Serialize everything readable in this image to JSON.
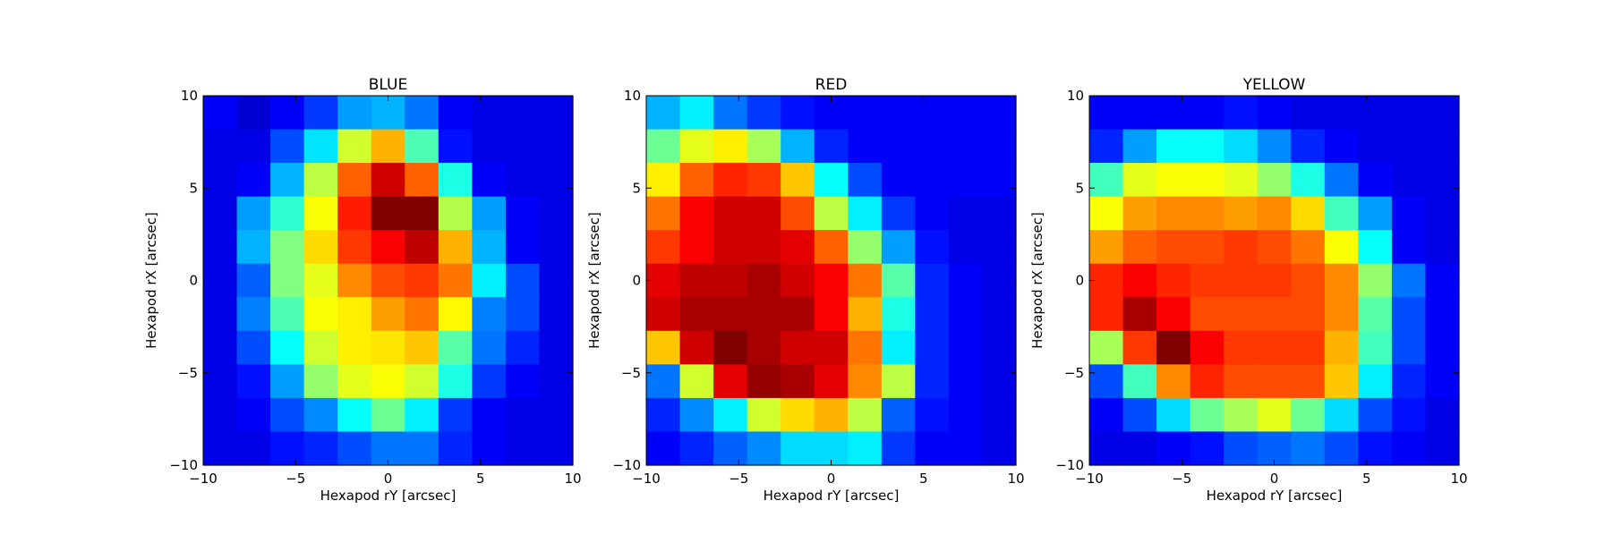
{
  "figure": {
    "background": "#ffffff",
    "colormap": "jet"
  },
  "chart_data": [
    {
      "type": "heatmap",
      "title": "BLUE",
      "xlabel": "Hexapod rY [arcsec]",
      "ylabel": "Hexapod rX [arcsec]",
      "xlim": [
        -10,
        10
      ],
      "ylim": [
        -10,
        10
      ],
      "xticks": [
        -10,
        -5,
        0,
        5,
        10
      ],
      "yticks": [
        -10,
        -5,
        0,
        5,
        10
      ],
      "tick_labels": [
        "−10",
        "−5",
        "0",
        "5",
        "10"
      ],
      "grid_size": [
        11,
        11
      ],
      "value_range": [
        0,
        1
      ],
      "values_top_to_bottom": [
        [
          0.12,
          0.08,
          0.12,
          0.18,
          0.28,
          0.3,
          0.24,
          0.12,
          0.1,
          0.1,
          0.1
        ],
        [
          0.1,
          0.1,
          0.2,
          0.35,
          0.58,
          0.7,
          0.45,
          0.14,
          0.1,
          0.1,
          0.1
        ],
        [
          0.1,
          0.12,
          0.3,
          0.56,
          0.78,
          0.92,
          0.78,
          0.4,
          0.12,
          0.1,
          0.1
        ],
        [
          0.1,
          0.28,
          0.42,
          0.62,
          0.85,
          1.0,
          1.0,
          0.55,
          0.28,
          0.12,
          0.1
        ],
        [
          0.1,
          0.3,
          0.5,
          0.66,
          0.82,
          0.88,
          0.94,
          0.7,
          0.3,
          0.12,
          0.1
        ],
        [
          0.1,
          0.22,
          0.5,
          0.6,
          0.74,
          0.8,
          0.82,
          0.76,
          0.36,
          0.2,
          0.1
        ],
        [
          0.1,
          0.25,
          0.45,
          0.62,
          0.64,
          0.72,
          0.76,
          0.63,
          0.25,
          0.2,
          0.1
        ],
        [
          0.1,
          0.2,
          0.38,
          0.58,
          0.64,
          0.65,
          0.68,
          0.46,
          0.24,
          0.16,
          0.1
        ],
        [
          0.1,
          0.14,
          0.28,
          0.52,
          0.6,
          0.62,
          0.58,
          0.4,
          0.18,
          0.12,
          0.1
        ],
        [
          0.1,
          0.12,
          0.2,
          0.26,
          0.38,
          0.48,
          0.36,
          0.18,
          0.12,
          0.1,
          0.1
        ],
        [
          0.1,
          0.1,
          0.14,
          0.16,
          0.2,
          0.24,
          0.24,
          0.16,
          0.12,
          0.1,
          0.1
        ]
      ]
    },
    {
      "type": "heatmap",
      "title": "RED",
      "xlabel": "Hexapod rY [arcsec]",
      "ylabel": "Hexapod rX [arcsec]",
      "xlim": [
        -10,
        10
      ],
      "ylim": [
        -10,
        10
      ],
      "xticks": [
        -10,
        -5,
        0,
        5,
        10
      ],
      "yticks": [
        -10,
        -5,
        0,
        5,
        10
      ],
      "tick_labels": [
        "−10",
        "−5",
        "0",
        "5",
        "10"
      ],
      "grid_size": [
        11,
        11
      ],
      "value_range": [
        0,
        1
      ],
      "values_top_to_bottom": [
        [
          0.3,
          0.36,
          0.24,
          0.18,
          0.14,
          0.12,
          0.12,
          0.12,
          0.12,
          0.12,
          0.12
        ],
        [
          0.48,
          0.6,
          0.64,
          0.54,
          0.3,
          0.16,
          0.12,
          0.12,
          0.12,
          0.12,
          0.12
        ],
        [
          0.64,
          0.78,
          0.84,
          0.82,
          0.68,
          0.38,
          0.2,
          0.12,
          0.12,
          0.12,
          0.12
        ],
        [
          0.76,
          0.88,
          0.92,
          0.92,
          0.8,
          0.56,
          0.36,
          0.18,
          0.12,
          0.1,
          0.1
        ],
        [
          0.82,
          0.88,
          0.92,
          0.92,
          0.9,
          0.78,
          0.52,
          0.28,
          0.14,
          0.1,
          0.1
        ],
        [
          0.9,
          0.94,
          0.94,
          0.96,
          0.92,
          0.88,
          0.76,
          0.46,
          0.16,
          0.12,
          0.1
        ],
        [
          0.92,
          0.96,
          0.96,
          0.96,
          0.96,
          0.88,
          0.7,
          0.4,
          0.16,
          0.12,
          0.1
        ],
        [
          0.68,
          0.92,
          1.0,
          0.96,
          0.92,
          0.92,
          0.76,
          0.36,
          0.16,
          0.12,
          0.1
        ],
        [
          0.24,
          0.58,
          0.9,
          0.98,
          0.96,
          0.9,
          0.74,
          0.56,
          0.16,
          0.12,
          0.1
        ],
        [
          0.16,
          0.26,
          0.36,
          0.58,
          0.66,
          0.7,
          0.56,
          0.22,
          0.14,
          0.12,
          0.1
        ],
        [
          0.12,
          0.16,
          0.22,
          0.26,
          0.34,
          0.34,
          0.36,
          0.18,
          0.12,
          0.12,
          0.1
        ]
      ]
    },
    {
      "type": "heatmap",
      "title": "YELLOW",
      "xlabel": "Hexapod rY [arcsec]",
      "ylabel": "Hexapod rX [arcsec]",
      "xlim": [
        -10,
        10
      ],
      "ylim": [
        -10,
        10
      ],
      "xticks": [
        -10,
        -5,
        0,
        5,
        10
      ],
      "yticks": [
        -10,
        -5,
        0,
        5,
        10
      ],
      "tick_labels": [
        "−10",
        "−5",
        "0",
        "5",
        "10"
      ],
      "grid_size": [
        11,
        11
      ],
      "value_range": [
        0,
        1
      ],
      "values_top_to_bottom": [
        [
          0.12,
          0.12,
          0.12,
          0.12,
          0.14,
          0.12,
          0.1,
          0.1,
          0.1,
          0.1,
          0.1
        ],
        [
          0.16,
          0.28,
          0.38,
          0.38,
          0.34,
          0.26,
          0.16,
          0.12,
          0.1,
          0.1,
          0.1
        ],
        [
          0.44,
          0.6,
          0.62,
          0.62,
          0.6,
          0.52,
          0.4,
          0.24,
          0.12,
          0.1,
          0.1
        ],
        [
          0.62,
          0.72,
          0.74,
          0.74,
          0.72,
          0.74,
          0.66,
          0.44,
          0.28,
          0.12,
          0.1
        ],
        [
          0.72,
          0.78,
          0.8,
          0.8,
          0.82,
          0.8,
          0.76,
          0.62,
          0.38,
          0.12,
          0.1
        ],
        [
          0.84,
          0.88,
          0.84,
          0.82,
          0.82,
          0.82,
          0.8,
          0.74,
          0.52,
          0.24,
          0.12
        ],
        [
          0.84,
          0.96,
          0.88,
          0.8,
          0.8,
          0.8,
          0.8,
          0.74,
          0.46,
          0.2,
          0.12
        ],
        [
          0.54,
          0.82,
          1.0,
          0.88,
          0.82,
          0.82,
          0.82,
          0.7,
          0.44,
          0.2,
          0.12
        ],
        [
          0.2,
          0.44,
          0.74,
          0.84,
          0.8,
          0.8,
          0.8,
          0.68,
          0.36,
          0.16,
          0.12
        ],
        [
          0.12,
          0.2,
          0.34,
          0.48,
          0.54,
          0.6,
          0.48,
          0.34,
          0.2,
          0.14,
          0.1
        ],
        [
          0.1,
          0.1,
          0.12,
          0.14,
          0.2,
          0.22,
          0.24,
          0.2,
          0.14,
          0.12,
          0.1
        ]
      ]
    }
  ]
}
